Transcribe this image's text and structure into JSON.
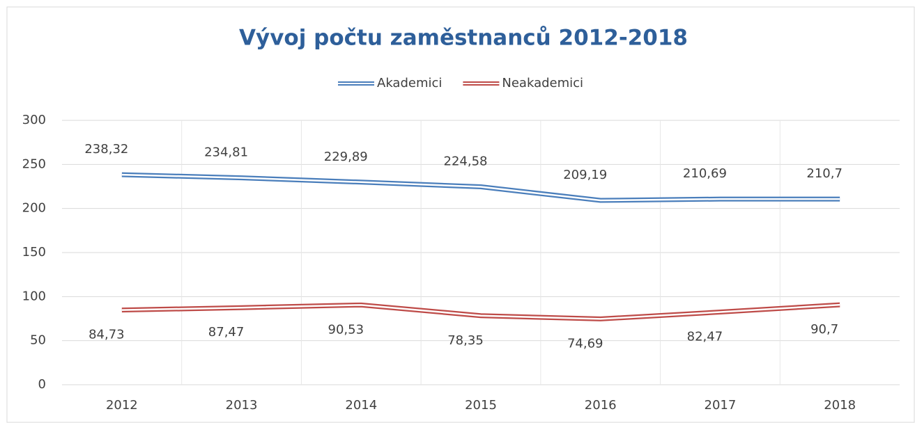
{
  "chart_data": {
    "type": "line",
    "title": "Vývoj počtu zaměstnanců 2012-2018",
    "categories": [
      "2012",
      "2013",
      "2014",
      "2015",
      "2016",
      "2017",
      "2018"
    ],
    "series": [
      {
        "name": "Akademici",
        "color": "#4a7ebb",
        "values": [
          238.32,
          234.81,
          229.89,
          224.58,
          209.19,
          210.69,
          210.7
        ],
        "value_labels": [
          "238,32",
          "234,81",
          "229,89",
          "224,58",
          "209,19",
          "210,69",
          "210,7"
        ]
      },
      {
        "name": "Neakademici",
        "color": "#be4b48",
        "values": [
          84.73,
          87.47,
          90.53,
          78.35,
          74.69,
          82.47,
          90.7
        ],
        "value_labels": [
          "84,73",
          "87,47",
          "90,53",
          "78,35",
          "74,69",
          "82,47",
          "90,7"
        ]
      }
    ],
    "ylim": [
      0,
      300
    ],
    "yticks": [
      0,
      50,
      100,
      150,
      200,
      250,
      300
    ],
    "grid": true,
    "legend": "top"
  }
}
